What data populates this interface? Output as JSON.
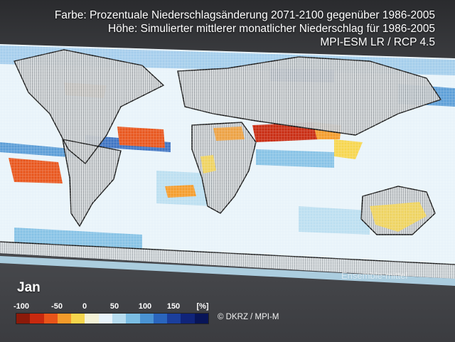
{
  "header": {
    "line1": "Farbe: Prozentuale Niederschlagsänderung 2071-2100 gegenüber 1986-2005",
    "line2": "Höhe: Simulierter mittlerer monatlicher Niederschlag für 1986-2005",
    "line3": "MPI-ESM LR / RCP 4.5"
  },
  "month": "Jan",
  "stamp": "Ensemble-mittel",
  "legend": {
    "ticks": [
      "-100",
      "-50",
      "0",
      "50",
      "100",
      "150",
      "[%]"
    ],
    "colors": [
      "#8c1a0a",
      "#c8290f",
      "#e8541a",
      "#f49b2a",
      "#f6d54c",
      "#f4f1d6",
      "#e8f3fa",
      "#b7dcef",
      "#7bbde3",
      "#4a93d3",
      "#2a65bd",
      "#1b3f9d",
      "#10247a",
      "#081558"
    ]
  },
  "credit": "© DKRZ / MPI-M",
  "colors": {
    "ocean": "#e8f3fa",
    "land": "#c8cacc",
    "wet": "#6ab0e0",
    "dry": "#f49b2a"
  }
}
